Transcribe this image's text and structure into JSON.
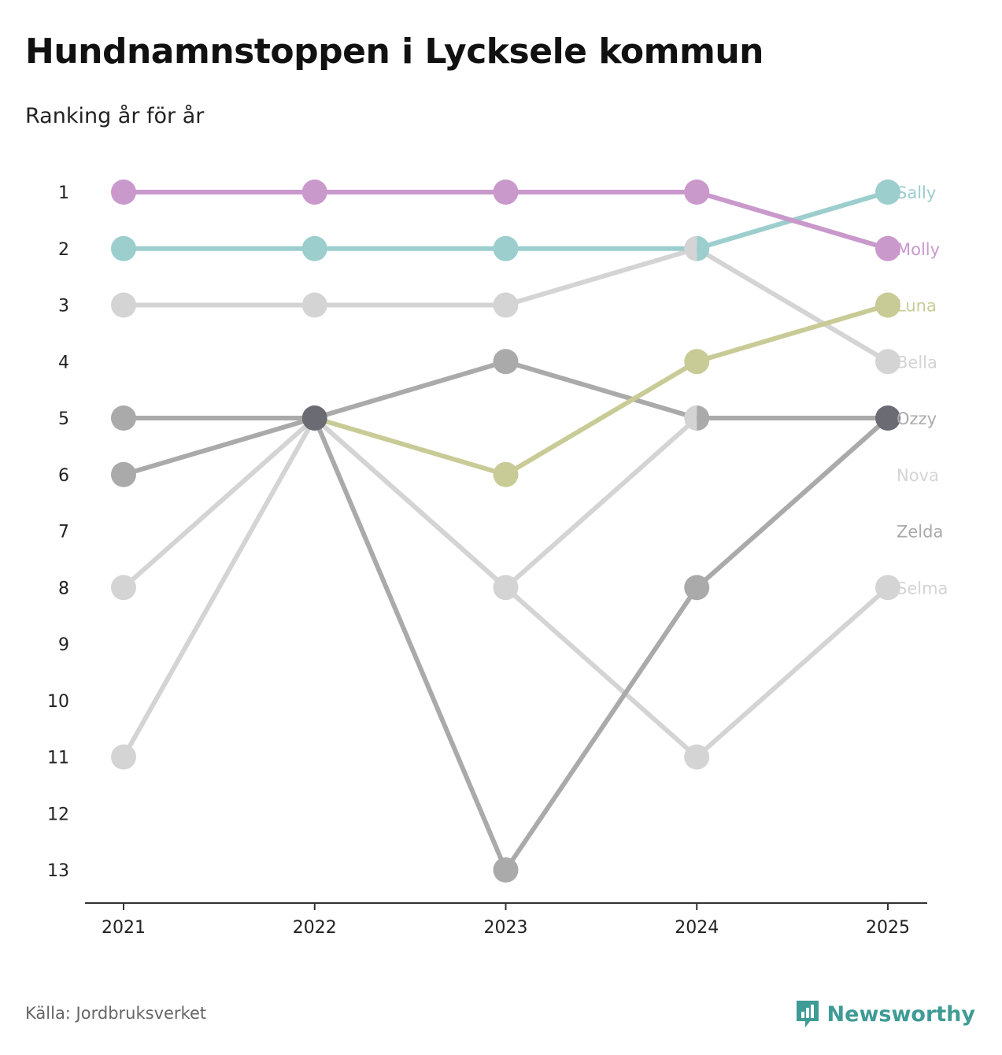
{
  "title": "Hundnamnstoppen i Lycksele kommun",
  "subtitle": "Ranking år för år",
  "source": "Källa: Jordbruksverket",
  "brand": "Newsworthy",
  "chart_data": {
    "type": "line",
    "title": "Hundnamnstoppen i Lycksele kommun",
    "subtitle": "Ranking år för år",
    "xlabel": "",
    "ylabel": "",
    "x": [
      "2021",
      "2022",
      "2023",
      "2024",
      "2025"
    ],
    "y_ticks": [
      "1",
      "2",
      "3",
      "4",
      "5",
      "6",
      "7",
      "8",
      "9",
      "10",
      "11",
      "12",
      "13"
    ],
    "ylim": [
      1,
      13
    ],
    "y_inverted": true,
    "grid": false,
    "series": [
      {
        "name": "Selma",
        "color": "#d4d4d4",
        "values": [
          11,
          5,
          8,
          11,
          8
        ]
      },
      {
        "name": "Nova",
        "color": "#d4d4d4",
        "values": [
          8,
          5,
          8,
          5,
          5
        ]
      },
      {
        "name": "Bella",
        "color": "#d4d4d4",
        "values": [
          3,
          3,
          3,
          2,
          4
        ]
      },
      {
        "name": "Zelda",
        "color": "#aaaaaa",
        "values": [
          6,
          5,
          4,
          5,
          5
        ]
      },
      {
        "name": "Ozzy",
        "color": "#aaaaaa",
        "values": [
          5,
          5,
          13,
          8,
          5
        ]
      },
      {
        "name": "Luna",
        "color": "#c9cb97",
        "values": [
          null,
          5,
          6,
          4,
          3
        ]
      },
      {
        "name": "Sally",
        "color": "#9bcecd",
        "values": [
          2,
          2,
          2,
          2,
          1
        ]
      },
      {
        "name": "Molly",
        "color": "#c999cc",
        "values": [
          1,
          1,
          1,
          1,
          2
        ]
      }
    ],
    "end_labels": [
      {
        "name": "Sally",
        "rank": 1,
        "color": "#9bcecd"
      },
      {
        "name": "Molly",
        "rank": 2,
        "color": "#c999cc"
      },
      {
        "name": "Luna",
        "rank": 3,
        "color": "#c9cb97"
      },
      {
        "name": "Bella",
        "rank": 4,
        "color": "#d4d4d4"
      },
      {
        "name": "Ozzy",
        "rank": 5,
        "color": "#aaaaaa"
      },
      {
        "name": "Nova",
        "rank": 6,
        "color": "#d4d4d4"
      },
      {
        "name": "Zelda",
        "rank": 7,
        "color": "#aaaaaa"
      },
      {
        "name": "Selma",
        "rank": 8,
        "color": "#d4d4d4"
      }
    ],
    "overlap_color": "#6b6b73"
  }
}
